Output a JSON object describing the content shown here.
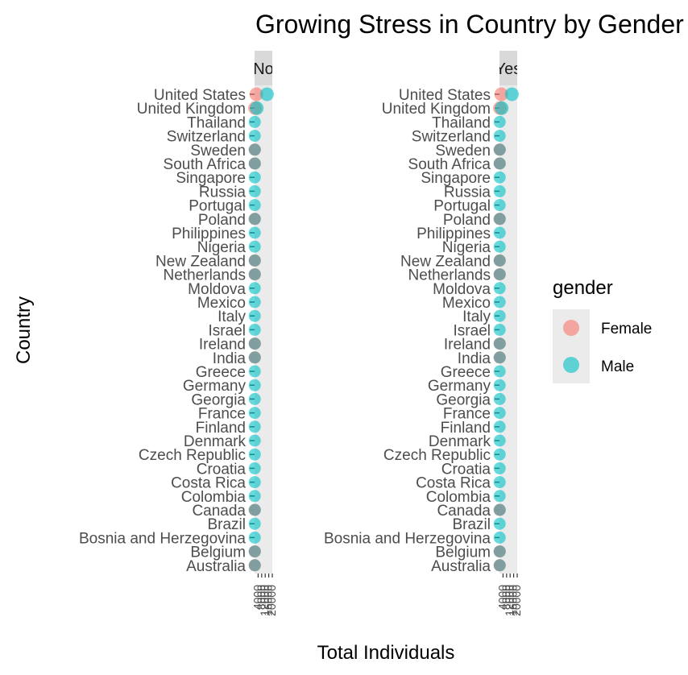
{
  "chart_data": {
    "type": "scatter",
    "title": "Growing Stress in Country by Gender",
    "xlabel": "Total Individuals",
    "ylabel": "Country",
    "facets": [
      "No",
      "Yes"
    ],
    "countries": [
      "Australia",
      "Belgium",
      "Bosnia and Herzegovina",
      "Brazil",
      "Canada",
      "Colombia",
      "Costa Rica",
      "Croatia",
      "Czech Republic",
      "Denmark",
      "Finland",
      "France",
      "Georgia",
      "Germany",
      "Greece",
      "India",
      "Ireland",
      "Israel",
      "Italy",
      "Mexico",
      "Moldova",
      "Netherlands",
      "New Zealand",
      "Nigeria",
      "Philippines",
      "Poland",
      "Portugal",
      "Russia",
      "Singapore",
      "South Africa",
      "Sweden",
      "Switzerland",
      "Thailand",
      "United Kingdom",
      "United States"
    ],
    "x_tick_labels": [
      "4000",
      "8000",
      "12000",
      "16000",
      "20000"
    ],
    "legend": {
      "title": "gender",
      "position": "right",
      "entries": [
        {
          "label": "Female",
          "color": "#F8766D"
        },
        {
          "label": "Male",
          "color": "#00BFC4"
        }
      ]
    },
    "points": [
      {
        "facet": "No",
        "country": "United States",
        "gender": "Female",
        "x": 2000
      },
      {
        "facet": "No",
        "country": "United States",
        "gender": "Male",
        "x": 14000
      },
      {
        "facet": "No",
        "country": "United Kingdom",
        "gender": "Female",
        "x": 500
      },
      {
        "facet": "No",
        "country": "United Kingdom",
        "gender": "Male",
        "x": 2500
      },
      {
        "facet": "Yes",
        "country": "United States",
        "gender": "Female",
        "x": 2000
      },
      {
        "facet": "Yes",
        "country": "United States",
        "gender": "Male",
        "x": 14000
      },
      {
        "facet": "Yes",
        "country": "United Kingdom",
        "gender": "Female",
        "x": 500
      },
      {
        "facet": "Yes",
        "country": "United Kingdom",
        "gender": "Male",
        "x": 2500
      }
    ],
    "both_gender_countries": [
      "Australia",
      "Belgium",
      "Canada",
      "India",
      "Ireland",
      "Netherlands",
      "New Zealand",
      "Poland",
      "South Africa",
      "Sweden"
    ],
    "male_only_x": 200,
    "both_female_x": 100,
    "both_male_x": 300,
    "colors": {
      "strip_bg": "#d9d9d9",
      "panel_bg": "#ebebeb",
      "legend_key_bg": "#ebebeb",
      "overlap": "#7a9ea0"
    }
  }
}
